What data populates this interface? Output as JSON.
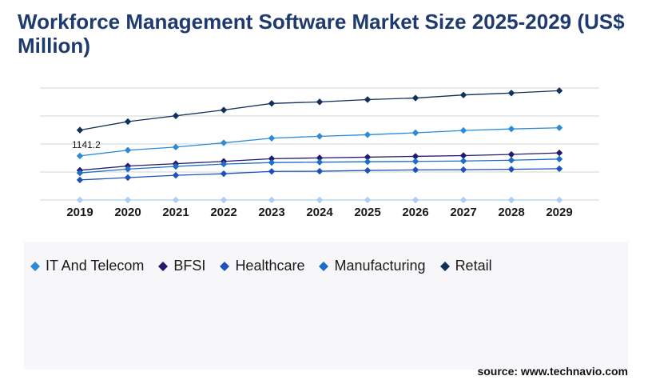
{
  "title": "Workforce Management Software Market Size 2025-2029 (US$ Million)",
  "source": "source: www.technavio.com",
  "chart_data": {
    "type": "line",
    "categories": [
      "2019",
      "2020",
      "2021",
      "2022",
      "2023",
      "2024",
      "2025",
      "2026",
      "2027",
      "2028",
      "2029"
    ],
    "annotation": "1141.2",
    "grid": true,
    "series": [
      {
        "name": "IT And Telecom",
        "color": "#2e8ad6",
        "values": [
          1141.2,
          1290,
          1370,
          1480,
          1600,
          1650,
          1690,
          1740,
          1800,
          1840,
          1870
        ]
      },
      {
        "name": "BFSI",
        "color": "#231a6e",
        "values": [
          770,
          880,
          940,
          1000,
          1070,
          1090,
          1110,
          1130,
          1150,
          1180,
          1220
        ]
      },
      {
        "name": "Healthcare",
        "color": "#1f50c0",
        "values": [
          520,
          580,
          640,
          680,
          740,
          745,
          765,
          780,
          785,
          795,
          810
        ]
      },
      {
        "name": "Manufacturing",
        "color": "#1b6fc9",
        "values": [
          700,
          800,
          870,
          930,
          970,
          980,
          990,
          1000,
          1010,
          1030,
          1060
        ]
      },
      {
        "name": "Retail",
        "color": "#10315a",
        "values": [
          1810,
          2030,
          2180,
          2330,
          2500,
          2540,
          2600,
          2640,
          2720,
          2770,
          2830
        ]
      },
      {
        "name": "",
        "color": "#a9cdf5",
        "values": [
          0,
          0,
          0,
          0,
          0,
          0,
          0,
          0,
          0,
          0,
          0
        ]
      }
    ],
    "ylim": [
      0,
      2900
    ]
  }
}
